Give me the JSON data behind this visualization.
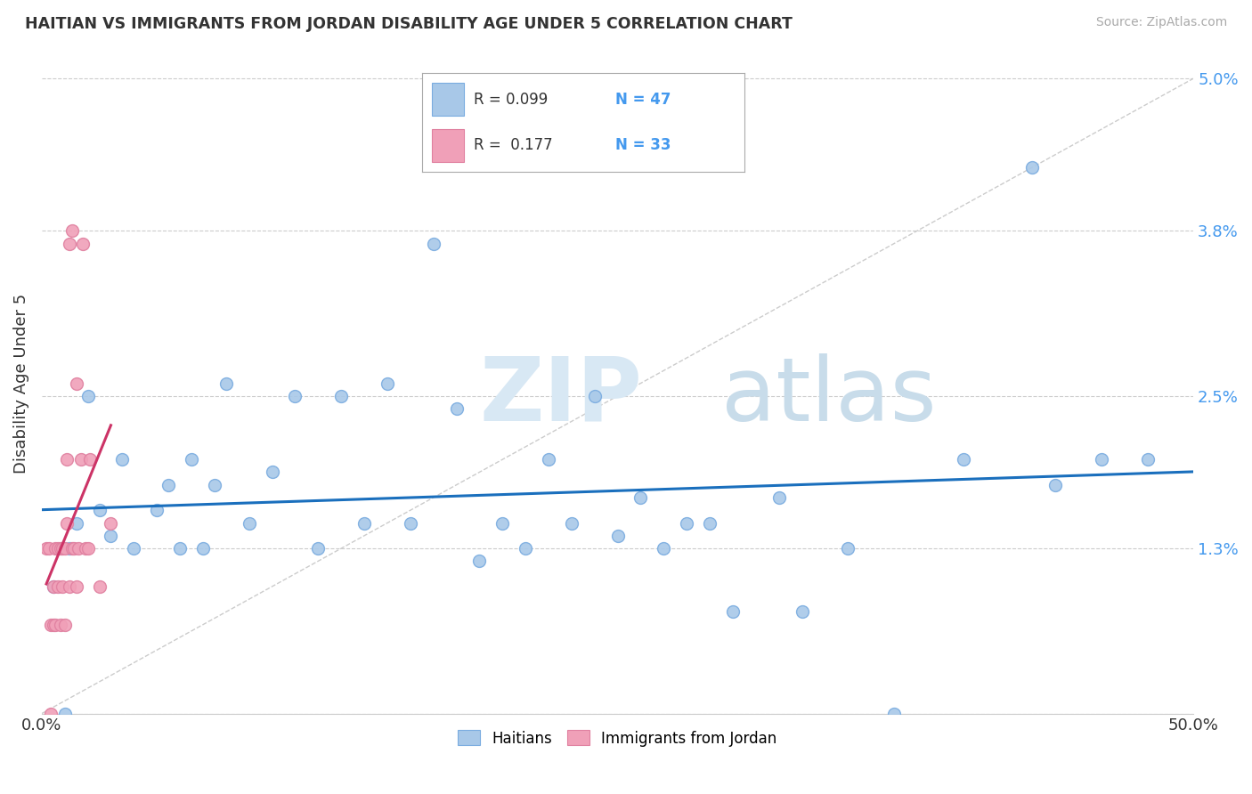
{
  "title": "HAITIAN VS IMMIGRANTS FROM JORDAN DISABILITY AGE UNDER 5 CORRELATION CHART",
  "source_text": "Source: ZipAtlas.com",
  "ylabel": "Disability Age Under 5",
  "xlim": [
    0,
    50
  ],
  "ylim": [
    0,
    5.2
  ],
  "ytick_vals": [
    0,
    1.3,
    2.5,
    3.8,
    5.0
  ],
  "ytick_labels": [
    "",
    "1.3%",
    "2.5%",
    "3.8%",
    "5.0%"
  ],
  "xtick_vals": [
    0,
    50
  ],
  "xtick_labels": [
    "0.0%",
    "50.0%"
  ],
  "haitian_color": "#a8c8e8",
  "jordan_color": "#f0a0b8",
  "haitian_line_color": "#1a6fbd",
  "jordan_line_color": "#cc3366",
  "haitian_x": [
    0.5,
    1.0,
    1.2,
    1.5,
    2.0,
    2.5,
    3.0,
    3.5,
    4.0,
    5.0,
    5.5,
    6.0,
    6.5,
    7.0,
    7.5,
    8.0,
    9.0,
    10.0,
    11.0,
    12.0,
    13.0,
    14.0,
    15.0,
    16.0,
    17.0,
    18.0,
    19.0,
    20.0,
    21.0,
    22.0,
    23.0,
    24.0,
    25.0,
    26.0,
    27.0,
    28.0,
    29.0,
    30.0,
    32.0,
    33.0,
    35.0,
    37.0,
    40.0,
    43.0,
    44.0,
    46.0,
    48.0
  ],
  "haitian_y": [
    1.0,
    0.0,
    1.3,
    1.5,
    2.5,
    1.6,
    1.4,
    2.0,
    1.3,
    1.6,
    1.8,
    1.3,
    2.0,
    1.3,
    1.8,
    2.6,
    1.5,
    1.9,
    2.5,
    1.3,
    2.5,
    1.5,
    2.6,
    1.5,
    3.7,
    2.4,
    1.2,
    1.5,
    1.3,
    2.0,
    1.5,
    2.5,
    1.4,
    1.7,
    1.3,
    1.5,
    1.5,
    0.8,
    1.7,
    0.8,
    1.3,
    0.0,
    2.0,
    4.3,
    1.8,
    2.0,
    2.0
  ],
  "jordan_x": [
    0.2,
    0.3,
    0.4,
    0.4,
    0.5,
    0.5,
    0.6,
    0.6,
    0.7,
    0.7,
    0.8,
    0.8,
    0.9,
    0.9,
    1.0,
    1.0,
    1.1,
    1.1,
    1.2,
    1.2,
    1.3,
    1.3,
    1.4,
    1.5,
    1.5,
    1.6,
    1.7,
    1.8,
    1.9,
    2.0,
    2.1,
    2.5,
    3.0
  ],
  "jordan_y": [
    1.3,
    1.3,
    0.0,
    0.7,
    0.7,
    1.0,
    0.7,
    1.3,
    1.0,
    1.3,
    0.7,
    1.3,
    1.0,
    1.3,
    0.7,
    1.3,
    1.5,
    2.0,
    1.0,
    3.7,
    1.3,
    3.8,
    1.3,
    1.0,
    2.6,
    1.3,
    2.0,
    3.7,
    1.3,
    1.3,
    2.0,
    1.0,
    1.5
  ],
  "background_color": "#ffffff",
  "grid_color": "#cccccc"
}
